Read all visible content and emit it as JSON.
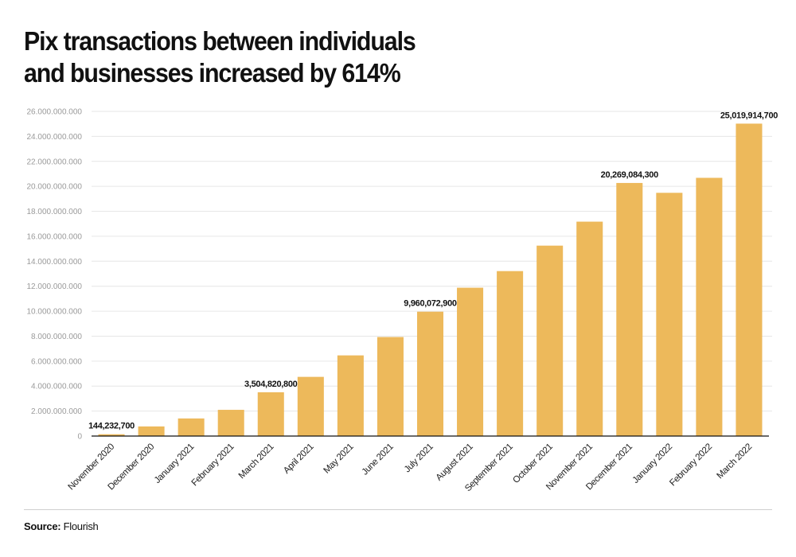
{
  "title_lines": [
    "Pix transactions between individuals",
    "and businesses increased by 614%"
  ],
  "source": {
    "label": "Source:",
    "value": "Flourish"
  },
  "colors": {
    "bar": "#EDB95B",
    "grid": "#e6e6e6",
    "axis": "#111111"
  },
  "chart_data": {
    "type": "bar",
    "title": "Pix transactions between individuals and businesses increased by 614%",
    "xlabel": "",
    "ylabel": "",
    "ylim": [
      0,
      26000000000
    ],
    "yticks": [
      0,
      2000000000,
      4000000000,
      6000000000,
      8000000000,
      10000000000,
      12000000000,
      14000000000,
      16000000000,
      18000000000,
      20000000000,
      22000000000,
      24000000000,
      26000000000
    ],
    "ytick_labels": [
      "0",
      "2.000.000.000",
      "4.000.000.000",
      "6.000.000.000",
      "8.000.000.000",
      "10.000.000.000",
      "12.000.000.000",
      "14.000.000.000",
      "16.000.000.000",
      "18.000.000.000",
      "20.000.000.000",
      "22.000.000.000",
      "24.000.000.000",
      "26.000.000.000"
    ],
    "grid": true,
    "legend": "none",
    "categories": [
      "November 2020",
      "December 2020",
      "January 2021",
      "February 2021",
      "March 2021",
      "April 2021",
      "May 2021",
      "June 2021",
      "July 2021",
      "August 2021",
      "September 2021",
      "October 2021",
      "November 2021",
      "December 2021",
      "January 2022",
      "February 2022",
      "March 2022"
    ],
    "values": [
      144232700,
      770000000,
      1410000000,
      2100000000,
      3504820800,
      4740000000,
      6460000000,
      7930000000,
      9960072900,
      11880000000,
      13210000000,
      15250000000,
      17170000000,
      20269084300,
      19480000000,
      20680000000,
      25019914700
    ],
    "data_labels": [
      {
        "index": 0,
        "text": "144,232,700"
      },
      {
        "index": 4,
        "text": "3,504,820,800"
      },
      {
        "index": 8,
        "text": "9,960,072,900"
      },
      {
        "index": 13,
        "text": "20,269,084,300"
      },
      {
        "index": 16,
        "text": "25,019,914,700"
      }
    ]
  }
}
